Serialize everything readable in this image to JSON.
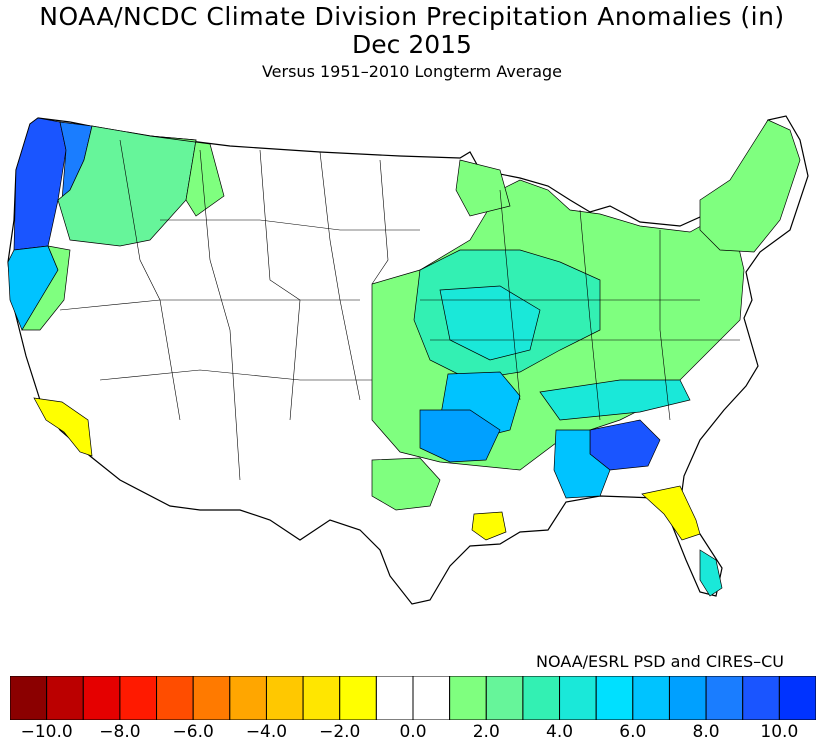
{
  "header": {
    "title": "NOAA/NCDC Climate Division Precipitation Anomalies (in)",
    "subtitle": "Dec 2015",
    "reference": "Versus 1951–2010 Longterm Average"
  },
  "credit": "NOAA/ESRL PSD and CIRES–CU",
  "legend": {
    "colors": [
      "#8b0000",
      "#bb0000",
      "#e50000",
      "#ff1a00",
      "#ff4d00",
      "#ff7a00",
      "#ffa600",
      "#ffc800",
      "#ffe600",
      "#ffff00",
      "#ffffff",
      "#ffffff",
      "#7fff7f",
      "#66f59a",
      "#33f0b3",
      "#1ae8d9",
      "#00e0ff",
      "#00c3ff",
      "#00a0ff",
      "#1a7dff",
      "#1a55ff",
      "#0033ff"
    ],
    "ticks": [
      "−10.0",
      "−8.0",
      "−6.0",
      "−4.0",
      "−2.0",
      "0.0",
      "2.0",
      "4.0",
      "6.0",
      "8.0",
      "10.0"
    ]
  },
  "map_regions": [
    {
      "name": "pacific-northwest-coast",
      "color": "#1a55ff"
    },
    {
      "name": "washington-cascades",
      "color": "#1a7dff"
    },
    {
      "name": "northern-california",
      "color": "#00c3ff"
    },
    {
      "name": "southern-california",
      "color": "#ffff00"
    },
    {
      "name": "louisiana-south",
      "color": "#ffff00"
    },
    {
      "name": "north-florida",
      "color": "#ffff00"
    },
    {
      "name": "mississippi-valley",
      "color": "#00a0ff"
    },
    {
      "name": "alabama-georgia",
      "color": "#1a55ff"
    },
    {
      "name": "great-plains-east",
      "color": "#7fff7f"
    },
    {
      "name": "midwest",
      "color": "#33f0b3"
    },
    {
      "name": "northeast",
      "color": "#7fff7f"
    }
  ]
}
